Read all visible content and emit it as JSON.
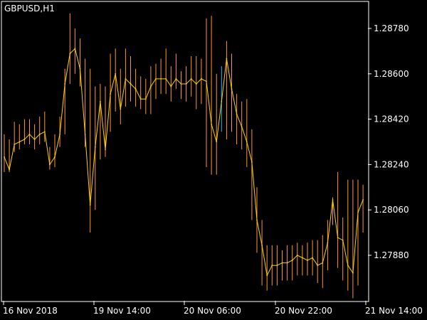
{
  "chart_data": {
    "type": "line",
    "title": "GBPUSD,H1",
    "y_axis": {
      "position": "right",
      "ticks": [
        "1.28780",
        "1.28600",
        "1.28420",
        "1.28240",
        "1.28060",
        "1.27880"
      ],
      "range": [
        1.2766,
        1.2888
      ]
    },
    "x_axis": {
      "ticks": [
        "16 Nov 2018",
        "19 Nov 14:00",
        "20 Nov 06:00",
        "20 Nov 22:00",
        "21 Nov 14:00"
      ]
    },
    "grid": false,
    "colors": {
      "background": "#000000",
      "frame": "#ffffff",
      "text": "#ffffff",
      "line": "#ffd200",
      "whisker": "#ff9a1a",
      "highlight": "#22b8ff"
    },
    "series": [
      {
        "values": [
          1.2827,
          1.2822,
          1.2832,
          1.2833,
          1.2834,
          1.2836,
          1.2834,
          1.2836,
          1.2837,
          1.2824,
          1.2827,
          1.2836,
          1.2856,
          1.2868,
          1.287,
          1.2862,
          1.2836,
          1.2808,
          1.2831,
          1.2849,
          1.283,
          1.2852,
          1.286,
          1.2846,
          1.2858,
          1.2856,
          1.2854,
          1.285,
          1.285,
          1.2855,
          1.2858,
          1.2858,
          1.2858,
          1.2855,
          1.2858,
          1.2856,
          1.2856,
          1.2858,
          1.2856,
          1.2858,
          1.2857,
          1.284,
          1.2833,
          1.2849,
          1.2866,
          1.2854,
          1.2844,
          1.2839,
          1.2833,
          1.2825,
          1.2802,
          1.2792,
          1.278,
          1.2784,
          1.2784,
          1.2785,
          1.2785,
          1.2786,
          1.2788,
          1.2787,
          1.2786,
          1.2787,
          1.2784,
          1.2785,
          1.2793,
          1.281,
          1.2795,
          1.2794,
          1.2784,
          1.2781,
          1.2805,
          1.281
        ],
        "high": [
          1.2836,
          1.2834,
          1.2841,
          1.284,
          1.2842,
          1.2842,
          1.284,
          1.2843,
          1.2845,
          1.2831,
          1.2836,
          1.2843,
          1.2862,
          1.2884,
          1.2878,
          1.2874,
          1.2866,
          1.2862,
          1.2855,
          1.2856,
          1.2855,
          1.2868,
          1.287,
          1.2862,
          1.287,
          1.2867,
          1.2862,
          1.2859,
          1.2858,
          1.2863,
          1.2864,
          1.2866,
          1.287,
          1.2863,
          1.2868,
          1.2861,
          1.2863,
          1.2867,
          1.2867,
          1.2866,
          1.2882,
          1.2883,
          1.286,
          1.2863,
          1.2873,
          1.2868,
          1.2852,
          1.2849,
          1.285,
          1.2838,
          1.2815,
          1.2802,
          1.2792,
          1.2792,
          1.2792,
          1.279,
          1.2792,
          1.2792,
          1.2793,
          1.2792,
          1.2793,
          1.2794,
          1.2794,
          1.2796,
          1.2802,
          1.2811,
          1.2821,
          1.2803,
          1.2818,
          1.2818,
          1.2818,
          1.2816
        ],
        "low": [
          1.2821,
          1.2821,
          1.2829,
          1.283,
          1.2832,
          1.2832,
          1.283,
          1.2832,
          1.2833,
          1.2822,
          1.2823,
          1.2831,
          1.2836,
          1.2856,
          1.286,
          1.2855,
          1.2831,
          1.2797,
          1.2806,
          1.2826,
          1.2827,
          1.2837,
          1.2845,
          1.284,
          1.2847,
          1.2849,
          1.2847,
          1.2846,
          1.2844,
          1.2844,
          1.285,
          1.2852,
          1.2852,
          1.2849,
          1.2854,
          1.285,
          1.2849,
          1.2851,
          1.2846,
          1.2848,
          1.2823,
          1.282,
          1.282,
          1.2837,
          1.2834,
          1.2837,
          1.2832,
          1.283,
          1.2823,
          1.2802,
          1.2789,
          1.2776,
          1.2774,
          1.2776,
          1.2776,
          1.2778,
          1.2778,
          1.2778,
          1.278,
          1.278,
          1.278,
          1.278,
          1.2777,
          1.2775,
          1.2782,
          1.28,
          1.2783,
          1.2778,
          1.2774,
          1.2771,
          1.2776,
          1.2797
        ]
      }
    ]
  }
}
